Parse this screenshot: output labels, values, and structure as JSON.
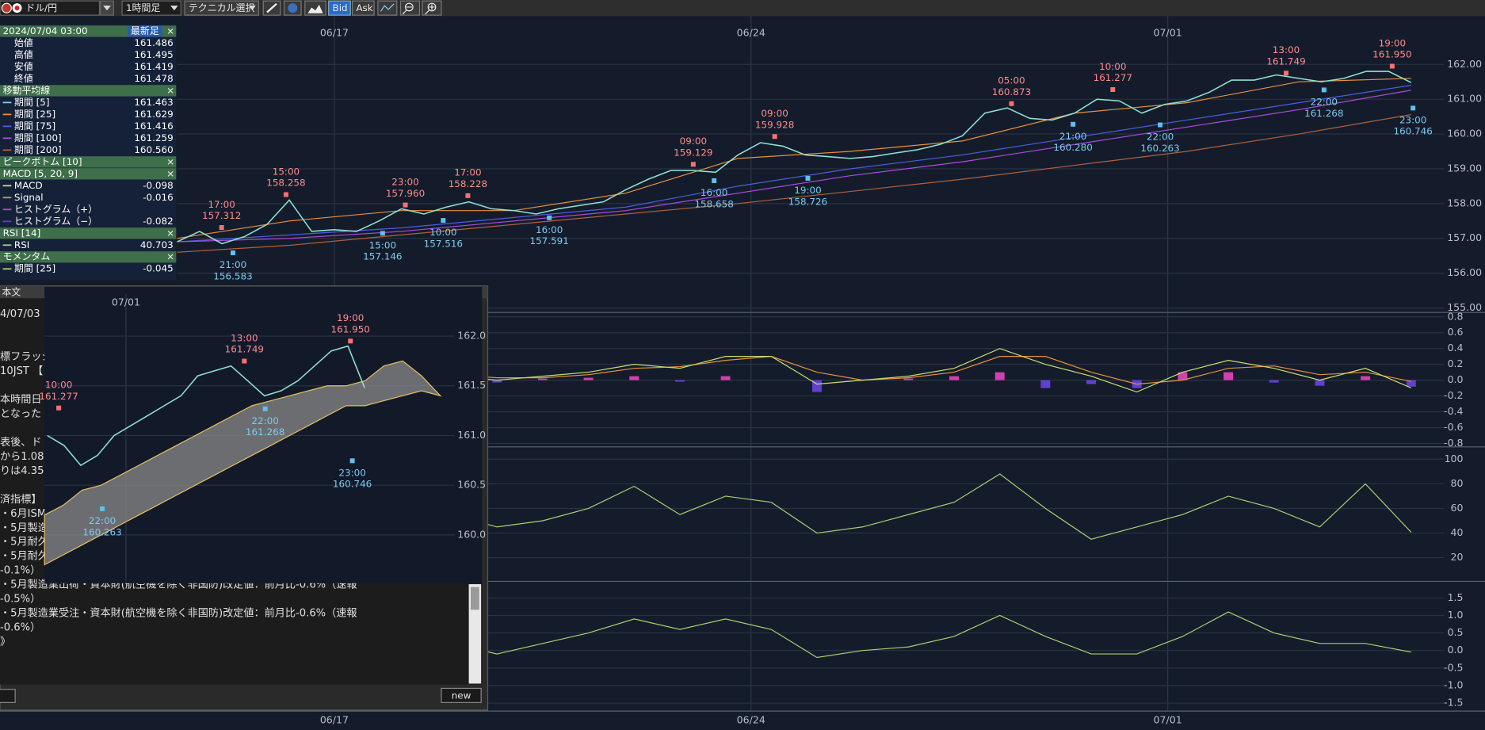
{
  "toolbar": {
    "pair": "ドル/円",
    "timeframe": "1時間足",
    "technical": "テクニカル選択",
    "bid": "Bid",
    "ask": "Ask"
  },
  "info_panel": {
    "datetime": "2024/07/04 03:00",
    "latest": "最新足",
    "close_icon": "×",
    "ohlc": [
      {
        "label": "始値",
        "value": "161.486"
      },
      {
        "label": "高値",
        "value": "161.495"
      },
      {
        "label": "安値",
        "value": "161.419"
      },
      {
        "label": "終値",
        "value": "161.478"
      }
    ],
    "sections": [
      {
        "title": "移動平均線",
        "rows": [
          {
            "name": "期間 [5]",
            "value": "161.463",
            "color": "#7fd4e8"
          },
          {
            "name": "期間 [25]",
            "value": "161.629",
            "color": "#e8903c"
          },
          {
            "name": "期間 [75]",
            "value": "161.416",
            "color": "#4a5ee0"
          },
          {
            "name": "期間 [100]",
            "value": "161.259",
            "color": "#b04ae0"
          },
          {
            "name": "期間 [200]",
            "value": "160.560",
            "color": "#b0603a"
          }
        ]
      },
      {
        "title": "ピークボトム [10]",
        "rows": []
      },
      {
        "title": "MACD [5, 20, 9]",
        "rows": [
          {
            "name": "MACD",
            "value": "-0.098",
            "color": "#c8e070"
          },
          {
            "name": "Signal",
            "value": "-0.016",
            "color": "#e8903c"
          },
          {
            "name": "ヒストグラム（+）",
            "color": "#d040b0"
          },
          {
            "name": "ヒストグラム（−）",
            "value": "-0.082",
            "color": "#6040d0"
          }
        ]
      },
      {
        "title": "RSI [14]",
        "rows": [
          {
            "name": "RSI",
            "value": "40.703",
            "color": "#a8d070"
          }
        ]
      },
      {
        "title": "モメンタム",
        "rows": [
          {
            "name": "期間 [25]",
            "value": "-0.045",
            "color": "#a8d070"
          }
        ]
      }
    ]
  },
  "price_chart": {
    "dates": [
      "06/17",
      "06/24",
      "07/01"
    ],
    "ylim": [
      154.87,
      163.39
    ],
    "yticks": [
      {
        "value": 162,
        "label": "162.00"
      },
      {
        "value": 161,
        "label": "161.00"
      },
      {
        "value": 160,
        "label": "160.00"
      },
      {
        "value": 159,
        "label": "159.00"
      },
      {
        "value": 158,
        "label": "158.00"
      },
      {
        "value": 157,
        "label": "157.00"
      },
      {
        "value": 156,
        "label": "156.00"
      },
      {
        "value": 155,
        "label": "155.00"
      }
    ],
    "close": {
      "color": "#8fe0d0",
      "values": [
        156.9,
        157.2,
        156.85,
        157.05,
        157.4,
        158.1,
        157.2,
        157.25,
        157.2,
        157.5,
        157.85,
        157.7,
        157.9,
        158.05,
        157.85,
        157.8,
        157.7,
        157.85,
        157.95,
        158.05,
        158.4,
        158.7,
        158.95,
        158.95,
        158.9,
        159.4,
        159.75,
        159.65,
        159.4,
        159.35,
        159.3,
        159.35,
        159.45,
        159.55,
        159.7,
        159.95,
        160.6,
        160.75,
        160.45,
        160.4,
        160.6,
        161.0,
        160.95,
        160.6,
        160.85,
        160.95,
        161.2,
        161.55,
        161.55,
        161.7,
        161.6,
        161.5,
        161.6,
        161.8,
        161.8,
        161.48
      ]
    },
    "moving_averages": [
      {
        "color": "#e8903c",
        "values": [
          157.0,
          157.5,
          157.8,
          157.8,
          158.3,
          159.3,
          159.5,
          159.8,
          160.6,
          160.9,
          161.5,
          161.6
        ]
      },
      {
        "color": "#4a5ee0",
        "values": [
          156.9,
          157.1,
          157.3,
          157.6,
          157.9,
          158.5,
          159.0,
          159.4,
          159.9,
          160.4,
          160.9,
          161.4
        ]
      },
      {
        "color": "#b04ae0",
        "values": [
          156.9,
          157.0,
          157.2,
          157.5,
          157.8,
          158.3,
          158.8,
          159.2,
          159.7,
          160.2,
          160.7,
          161.26
        ]
      },
      {
        "color": "#b0603a",
        "values": [
          156.6,
          156.8,
          157.1,
          157.4,
          157.7,
          158.0,
          158.35,
          158.7,
          159.1,
          159.5,
          160.0,
          160.56
        ]
      }
    ],
    "peaks": [
      {
        "time": "17:00",
        "price": {
          "value": 157.312,
          "label": "157.312"
        }
      },
      {
        "time": "15:00",
        "price": {
          "value": 158.258,
          "label": "158.258"
        }
      },
      {
        "time": "23:00",
        "price": {
          "value": 157.96,
          "label": "157.960"
        }
      },
      {
        "time": "17:00",
        "price": {
          "value": 158.228,
          "label": "158.228"
        }
      },
      {
        "time": "09:00",
        "price": {
          "value": 159.129,
          "label": "159.129"
        }
      },
      {
        "time": "09:00",
        "price": {
          "value": 159.928,
          "label": "159.928"
        }
      },
      {
        "time": "05:00",
        "price": {
          "value": 160.873,
          "label": "160.873"
        }
      },
      {
        "time": "10:00",
        "price": {
          "value": 161.277,
          "label": "161.277"
        }
      },
      {
        "time": "13:00",
        "price": {
          "value": 161.749,
          "label": "161.749"
        }
      },
      {
        "time": "19:00",
        "price": {
          "value": 161.95,
          "label": "161.950"
        }
      }
    ],
    "bottoms": [
      {
        "time": "21:00",
        "price": {
          "value": 156.583,
          "label": "156.583"
        }
      },
      {
        "time": "15:00",
        "price": {
          "value": 157.146,
          "label": "157.146"
        }
      },
      {
        "time": "10:00",
        "price": {
          "value": 157.516,
          "label": "157.516"
        }
      },
      {
        "time": "16:00",
        "price": {
          "value": 157.591,
          "label": "157.591"
        }
      },
      {
        "time": "16:00",
        "price": {
          "value": 158.658,
          "label": "158.658"
        }
      },
      {
        "time": "19:00",
        "price": {
          "value": 158.726,
          "label": "158.726"
        }
      },
      {
        "time": "21:00",
        "price": {
          "value": 160.28,
          "label": "160.280"
        }
      },
      {
        "time": "22:00",
        "price": {
          "value": 160.263,
          "label": "160.263"
        }
      },
      {
        "time": "22:00",
        "price": {
          "value": 161.268,
          "label": "161.268"
        }
      },
      {
        "time": "23:00",
        "price": {
          "value": 160.746,
          "label": "160.746"
        }
      }
    ]
  },
  "macd_chart": {
    "ylim": [
      -0.82,
      0.82
    ],
    "yticks": [
      0.8,
      0.6,
      0.4,
      0.2,
      {
        "value": 0,
        "label": "0.0"
      },
      -0.2,
      -0.4,
      -0.6,
      -0.8
    ],
    "macd": {
      "color": "#c8e070",
      "values": [
        0.1,
        0.2,
        0.15,
        0.05,
        0.1,
        0.1,
        0.05,
        0.0,
        0.05,
        0.1,
        0.2,
        0.15,
        0.3,
        0.3,
        -0.05,
        0.0,
        0.05,
        0.15,
        0.4,
        0.2,
        0.05,
        -0.15,
        0.1,
        0.25,
        0.15,
        0.0,
        0.15,
        -0.098
      ]
    },
    "signal": {
      "color": "#e8903c",
      "values": [
        0.05,
        0.15,
        0.15,
        0.1,
        0.08,
        0.1,
        0.07,
        0.03,
        0.03,
        0.07,
        0.15,
        0.17,
        0.25,
        0.3,
        0.1,
        0.0,
        0.03,
        0.1,
        0.3,
        0.3,
        0.1,
        -0.05,
        0.0,
        0.15,
        0.18,
        0.07,
        0.1,
        -0.016
      ]
    },
    "histogram": {
      "positive_color": "#d040b0",
      "negative_color": "#6040d0",
      "values": [
        0.05,
        0.05,
        0,
        -0.05,
        0.02,
        0,
        -0.02,
        -0.03,
        0.02,
        0.03,
        0.05,
        -0.02,
        0.05,
        0,
        -0.15,
        0,
        0.02,
        0.05,
        0.1,
        -0.1,
        -0.05,
        -0.1,
        0.1,
        0.1,
        -0.03,
        -0.07,
        0.05,
        -0.082
      ]
    }
  },
  "rsi_chart": {
    "ylim": [
      2.3,
      107.7
    ],
    "yticks": [
      100,
      80,
      60,
      40,
      20
    ],
    "color": "#a8d070",
    "values": [
      50,
      65,
      45,
      55,
      60,
      50,
      55,
      45,
      50,
      60,
      78,
      55,
      70,
      65,
      40,
      45,
      55,
      65,
      88,
      60,
      35,
      45,
      55,
      70,
      60,
      45,
      80,
      40.703
    ]
  },
  "momentum_chart": {
    "ylim": [
      -1.7,
      1.89
    ],
    "yticks": [
      1.5,
      {
        "value": 1,
        "label": "1.0"
      },
      0.5,
      {
        "value": 0,
        "label": "0.0"
      },
      -0.5,
      {
        "value": -1,
        "label": "-1.0"
      },
      -1.5
    ],
    "color": "#a8d070",
    "values": [
      0.0,
      0.3,
      -0.2,
      0.1,
      0.3,
      0.1,
      0.2,
      -0.1,
      0.2,
      0.5,
      0.9,
      0.6,
      0.9,
      0.6,
      -0.2,
      0.0,
      0.1,
      0.4,
      1.0,
      0.4,
      -0.1,
      -0.1,
      0.4,
      1.1,
      0.5,
      0.2,
      0.2,
      -0.045
    ]
  },
  "news_window": {
    "title": "本文",
    "button": "new",
    "lines": [
      "4/07/03",
      "",
      "",
      "標フラッシ",
      "10JST 【",
      "",
      "本時間日",
      "となった",
      "",
      "表後、ド",
      "から1.08",
      "りは4.35",
      "",
      "済指標】",
      "・6月ISM",
      "・5月製造",
      "・5月耐久",
      "・5月耐久",
      "-0.1%）",
      "・5月製造業出荷・資本財(航空機を除く非国防)改定値：前月比-0.6%（速報",
      "-0.5%）",
      "・5月製造業受注・資本財(航空機を除く非国防)改定値：前月比-0.6%（速報",
      "-0.6%）",
      "》"
    ],
    "mini_chart": {
      "date": "07/01",
      "ylim": [
        159.514,
        162.495
      ],
      "yticks": [
        {
          "value": 162,
          "label": "162.0"
        },
        161.5,
        {
          "value": 161,
          "label": "161.0"
        },
        160.5,
        {
          "value": 160,
          "label": "160.0"
        }
      ],
      "close": {
        "color": "#8fe0d0",
        "values": [
          161.0,
          160.9,
          160.7,
          160.8,
          161.0,
          161.1,
          161.2,
          161.3,
          161.4,
          161.6,
          161.65,
          161.7,
          161.55,
          161.4,
          161.45,
          161.55,
          161.7,
          161.85,
          161.9,
          161.48
        ]
      },
      "cloud_upper": [
        160.2,
        160.3,
        160.45,
        160.5,
        160.6,
        160.7,
        160.8,
        160.9,
        161.0,
        161.1,
        161.2,
        161.3,
        161.35,
        161.4,
        161.45,
        161.5,
        161.5,
        161.55,
        161.7,
        161.75,
        161.6,
        161.4
      ],
      "cloud_lower": [
        159.7,
        159.8,
        159.9,
        160.0,
        160.1,
        160.2,
        160.3,
        160.4,
        160.5,
        160.6,
        160.7,
        160.8,
        160.9,
        161.0,
        161.1,
        161.2,
        161.3,
        161.3,
        161.35,
        161.4,
        161.45,
        161.4
      ],
      "peaks": [
        {
          "time": "10:00",
          "price": {
            "value": 161.277,
            "label": "161.277"
          }
        },
        {
          "time": "13:00",
          "price": {
            "value": 161.749,
            "label": "161.749"
          }
        },
        {
          "time": "19:00",
          "price": {
            "value": 161.95,
            "label": "161.950"
          }
        }
      ],
      "bottoms": [
        {
          "time": "22:00",
          "price": {
            "value": 160.263,
            "label": "160.263"
          }
        },
        {
          "time": "22:00",
          "price": {
            "value": 161.268,
            "label": "161.268"
          }
        },
        {
          "time": "23:00",
          "price": {
            "value": 160.746,
            "label": "160.746"
          }
        }
      ]
    }
  }
}
